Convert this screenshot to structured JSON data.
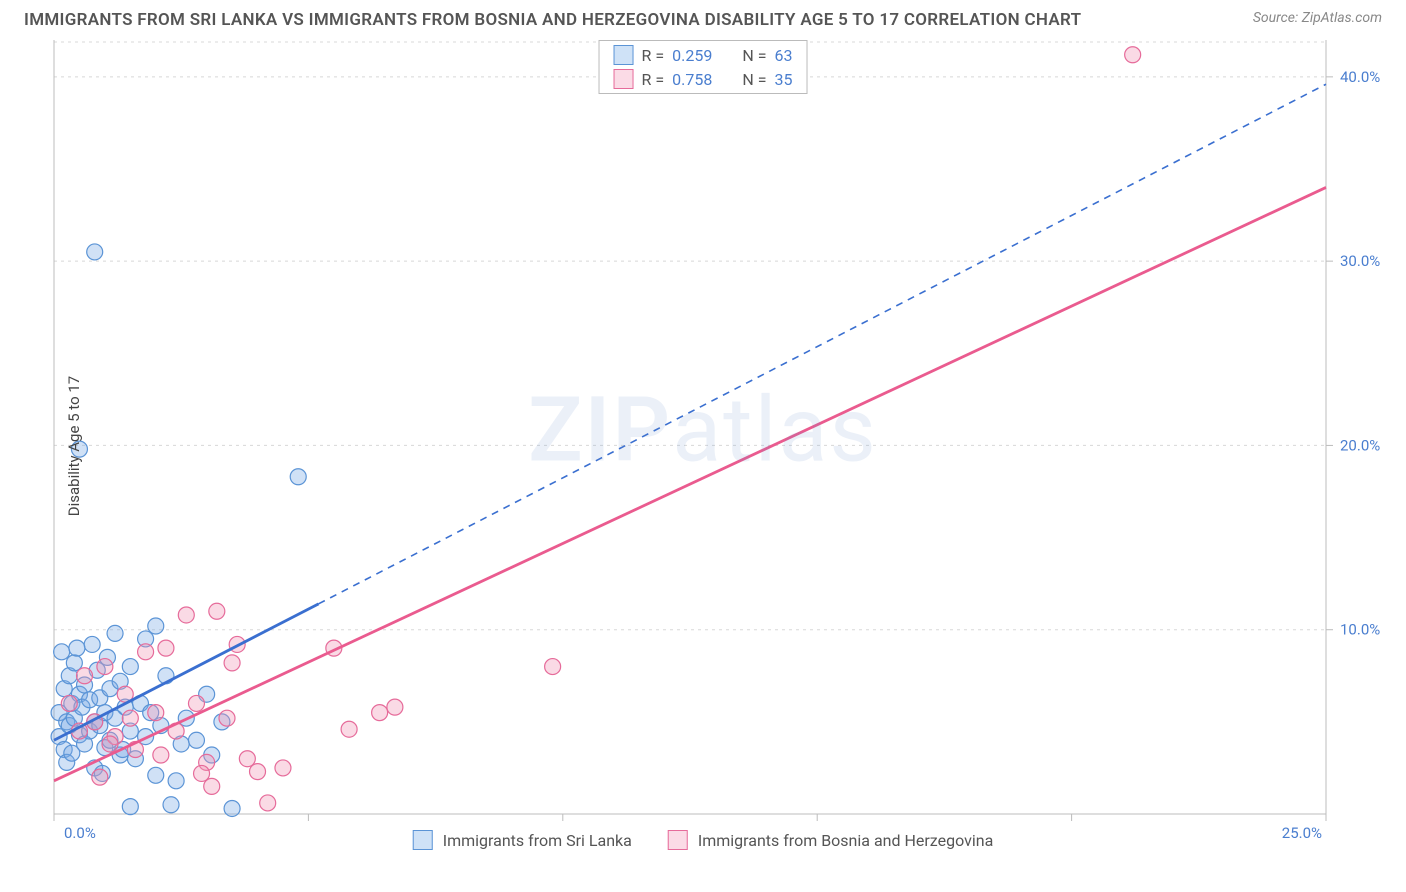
{
  "title": "IMMIGRANTS FROM SRI LANKA VS IMMIGRANTS FROM BOSNIA AND HERZEGOVINA DISABILITY AGE 5 TO 17 CORRELATION CHART",
  "source": "Source: ZipAtlas.com",
  "watermark": "ZIPatlas",
  "y_axis_label": "Disability Age 5 to 17",
  "chart": {
    "type": "scatter-with-regression",
    "background_color": "#ffffff",
    "grid_color": "#d8d8d8",
    "axis_color": "#bcbcbc",
    "tick_label_color": "#4a7ecf",
    "x_ticks": [
      0.0,
      5.0,
      10.0,
      15.0,
      20.0,
      25.0
    ],
    "x_tick_labels": [
      "0.0%",
      "",
      "",
      "",
      "",
      "25.0%"
    ],
    "xlim": [
      0.0,
      25.0
    ],
    "y_ticks": [
      10.0,
      20.0,
      30.0,
      40.0
    ],
    "y_tick_labels": [
      "10.0%",
      "20.0%",
      "30.0%",
      "40.0%"
    ],
    "ylim": [
      0.0,
      42.0
    ],
    "marker_radius": 8,
    "marker_stroke_width": 1.2,
    "series": [
      {
        "name": "Immigrants from Sri Lanka",
        "color_fill": "rgba(120,170,230,0.35)",
        "color_stroke": "#5b94d6",
        "swatch_fill": "#cfe2f7",
        "swatch_stroke": "#5b94d6",
        "regression_color": "#3a6fd0",
        "regression_dash_solid_until_x": 5.2,
        "regression_x0": 0.0,
        "regression_y0": 4.0,
        "regression_x1": 25.0,
        "regression_y1": 39.6,
        "R": "0.259",
        "N": "63",
        "points": [
          [
            0.1,
            4.2
          ],
          [
            0.1,
            5.5
          ],
          [
            0.2,
            3.5
          ],
          [
            0.2,
            6.8
          ],
          [
            0.25,
            2.8
          ],
          [
            0.25,
            5.0
          ],
          [
            0.3,
            4.8
          ],
          [
            0.3,
            7.5
          ],
          [
            0.35,
            6.0
          ],
          [
            0.35,
            3.3
          ],
          [
            0.4,
            5.2
          ],
          [
            0.4,
            8.2
          ],
          [
            0.5,
            4.3
          ],
          [
            0.5,
            6.5
          ],
          [
            0.55,
            5.8
          ],
          [
            0.6,
            3.8
          ],
          [
            0.6,
            7.0
          ],
          [
            0.7,
            4.5
          ],
          [
            0.7,
            6.2
          ],
          [
            0.75,
            9.2
          ],
          [
            0.8,
            5.0
          ],
          [
            0.8,
            2.5
          ],
          [
            0.85,
            7.8
          ],
          [
            0.9,
            4.8
          ],
          [
            0.9,
            6.3
          ],
          [
            1.0,
            3.6
          ],
          [
            1.0,
            5.5
          ],
          [
            1.05,
            8.5
          ],
          [
            1.1,
            4.0
          ],
          [
            1.1,
            6.8
          ],
          [
            1.2,
            5.2
          ],
          [
            1.2,
            9.8
          ],
          [
            1.3,
            3.2
          ],
          [
            1.3,
            7.2
          ],
          [
            1.4,
            5.8
          ],
          [
            1.5,
            4.5
          ],
          [
            1.5,
            8.0
          ],
          [
            1.6,
            3.0
          ],
          [
            1.7,
            6.0
          ],
          [
            1.8,
            4.2
          ],
          [
            1.8,
            9.5
          ],
          [
            1.9,
            5.5
          ],
          [
            2.0,
            2.1
          ],
          [
            2.1,
            4.8
          ],
          [
            2.2,
            7.5
          ],
          [
            2.3,
            0.5
          ],
          [
            2.5,
            3.8
          ],
          [
            2.6,
            5.2
          ],
          [
            2.8,
            4.0
          ],
          [
            3.0,
            6.5
          ],
          [
            3.1,
            3.2
          ],
          [
            3.3,
            5.0
          ],
          [
            0.8,
            30.5
          ],
          [
            0.5,
            19.8
          ],
          [
            4.8,
            18.3
          ],
          [
            2.0,
            10.2
          ],
          [
            1.5,
            0.4
          ],
          [
            3.5,
            0.3
          ],
          [
            2.4,
            1.8
          ],
          [
            0.15,
            8.8
          ],
          [
            0.45,
            9.0
          ],
          [
            1.35,
            3.5
          ],
          [
            0.95,
            2.2
          ]
        ]
      },
      {
        "name": "Immigrants from Bosnia and Herzegovina",
        "color_fill": "rgba(240,150,180,0.35)",
        "color_stroke": "#e66b9a",
        "swatch_fill": "#fbdbe6",
        "swatch_stroke": "#e66b9a",
        "regression_color": "#ea5b8f",
        "regression_dash_solid_until_x": 25.0,
        "regression_x0": 0.0,
        "regression_y0": 1.8,
        "regression_x1": 25.0,
        "regression_y1": 34.0,
        "R": "0.758",
        "N": "35",
        "points": [
          [
            0.3,
            6.0
          ],
          [
            0.5,
            4.5
          ],
          [
            0.6,
            7.5
          ],
          [
            0.8,
            5.0
          ],
          [
            1.0,
            8.0
          ],
          [
            1.2,
            4.2
          ],
          [
            1.4,
            6.5
          ],
          [
            1.6,
            3.5
          ],
          [
            1.8,
            8.8
          ],
          [
            2.0,
            5.5
          ],
          [
            2.2,
            9.0
          ],
          [
            2.4,
            4.5
          ],
          [
            2.6,
            10.8
          ],
          [
            2.8,
            6.0
          ],
          [
            3.0,
            2.8
          ],
          [
            3.2,
            11.0
          ],
          [
            3.4,
            5.2
          ],
          [
            3.6,
            9.2
          ],
          [
            3.8,
            3.0
          ],
          [
            4.0,
            2.3
          ],
          [
            4.2,
            0.6
          ],
          [
            4.5,
            2.5
          ],
          [
            5.8,
            4.6
          ],
          [
            6.4,
            5.5
          ],
          [
            6.7,
            5.8
          ],
          [
            5.5,
            9.0
          ],
          [
            3.5,
            8.2
          ],
          [
            2.9,
            2.2
          ],
          [
            9.8,
            8.0
          ],
          [
            21.2,
            41.2
          ],
          [
            1.1,
            3.8
          ],
          [
            1.5,
            5.2
          ],
          [
            2.1,
            3.2
          ],
          [
            0.9,
            2.0
          ],
          [
            3.1,
            1.5
          ]
        ]
      }
    ]
  },
  "legend_bottom": [
    {
      "label": "Immigrants from Sri Lanka"
    },
    {
      "label": "Immigrants from Bosnia and Herzegovina"
    }
  ]
}
